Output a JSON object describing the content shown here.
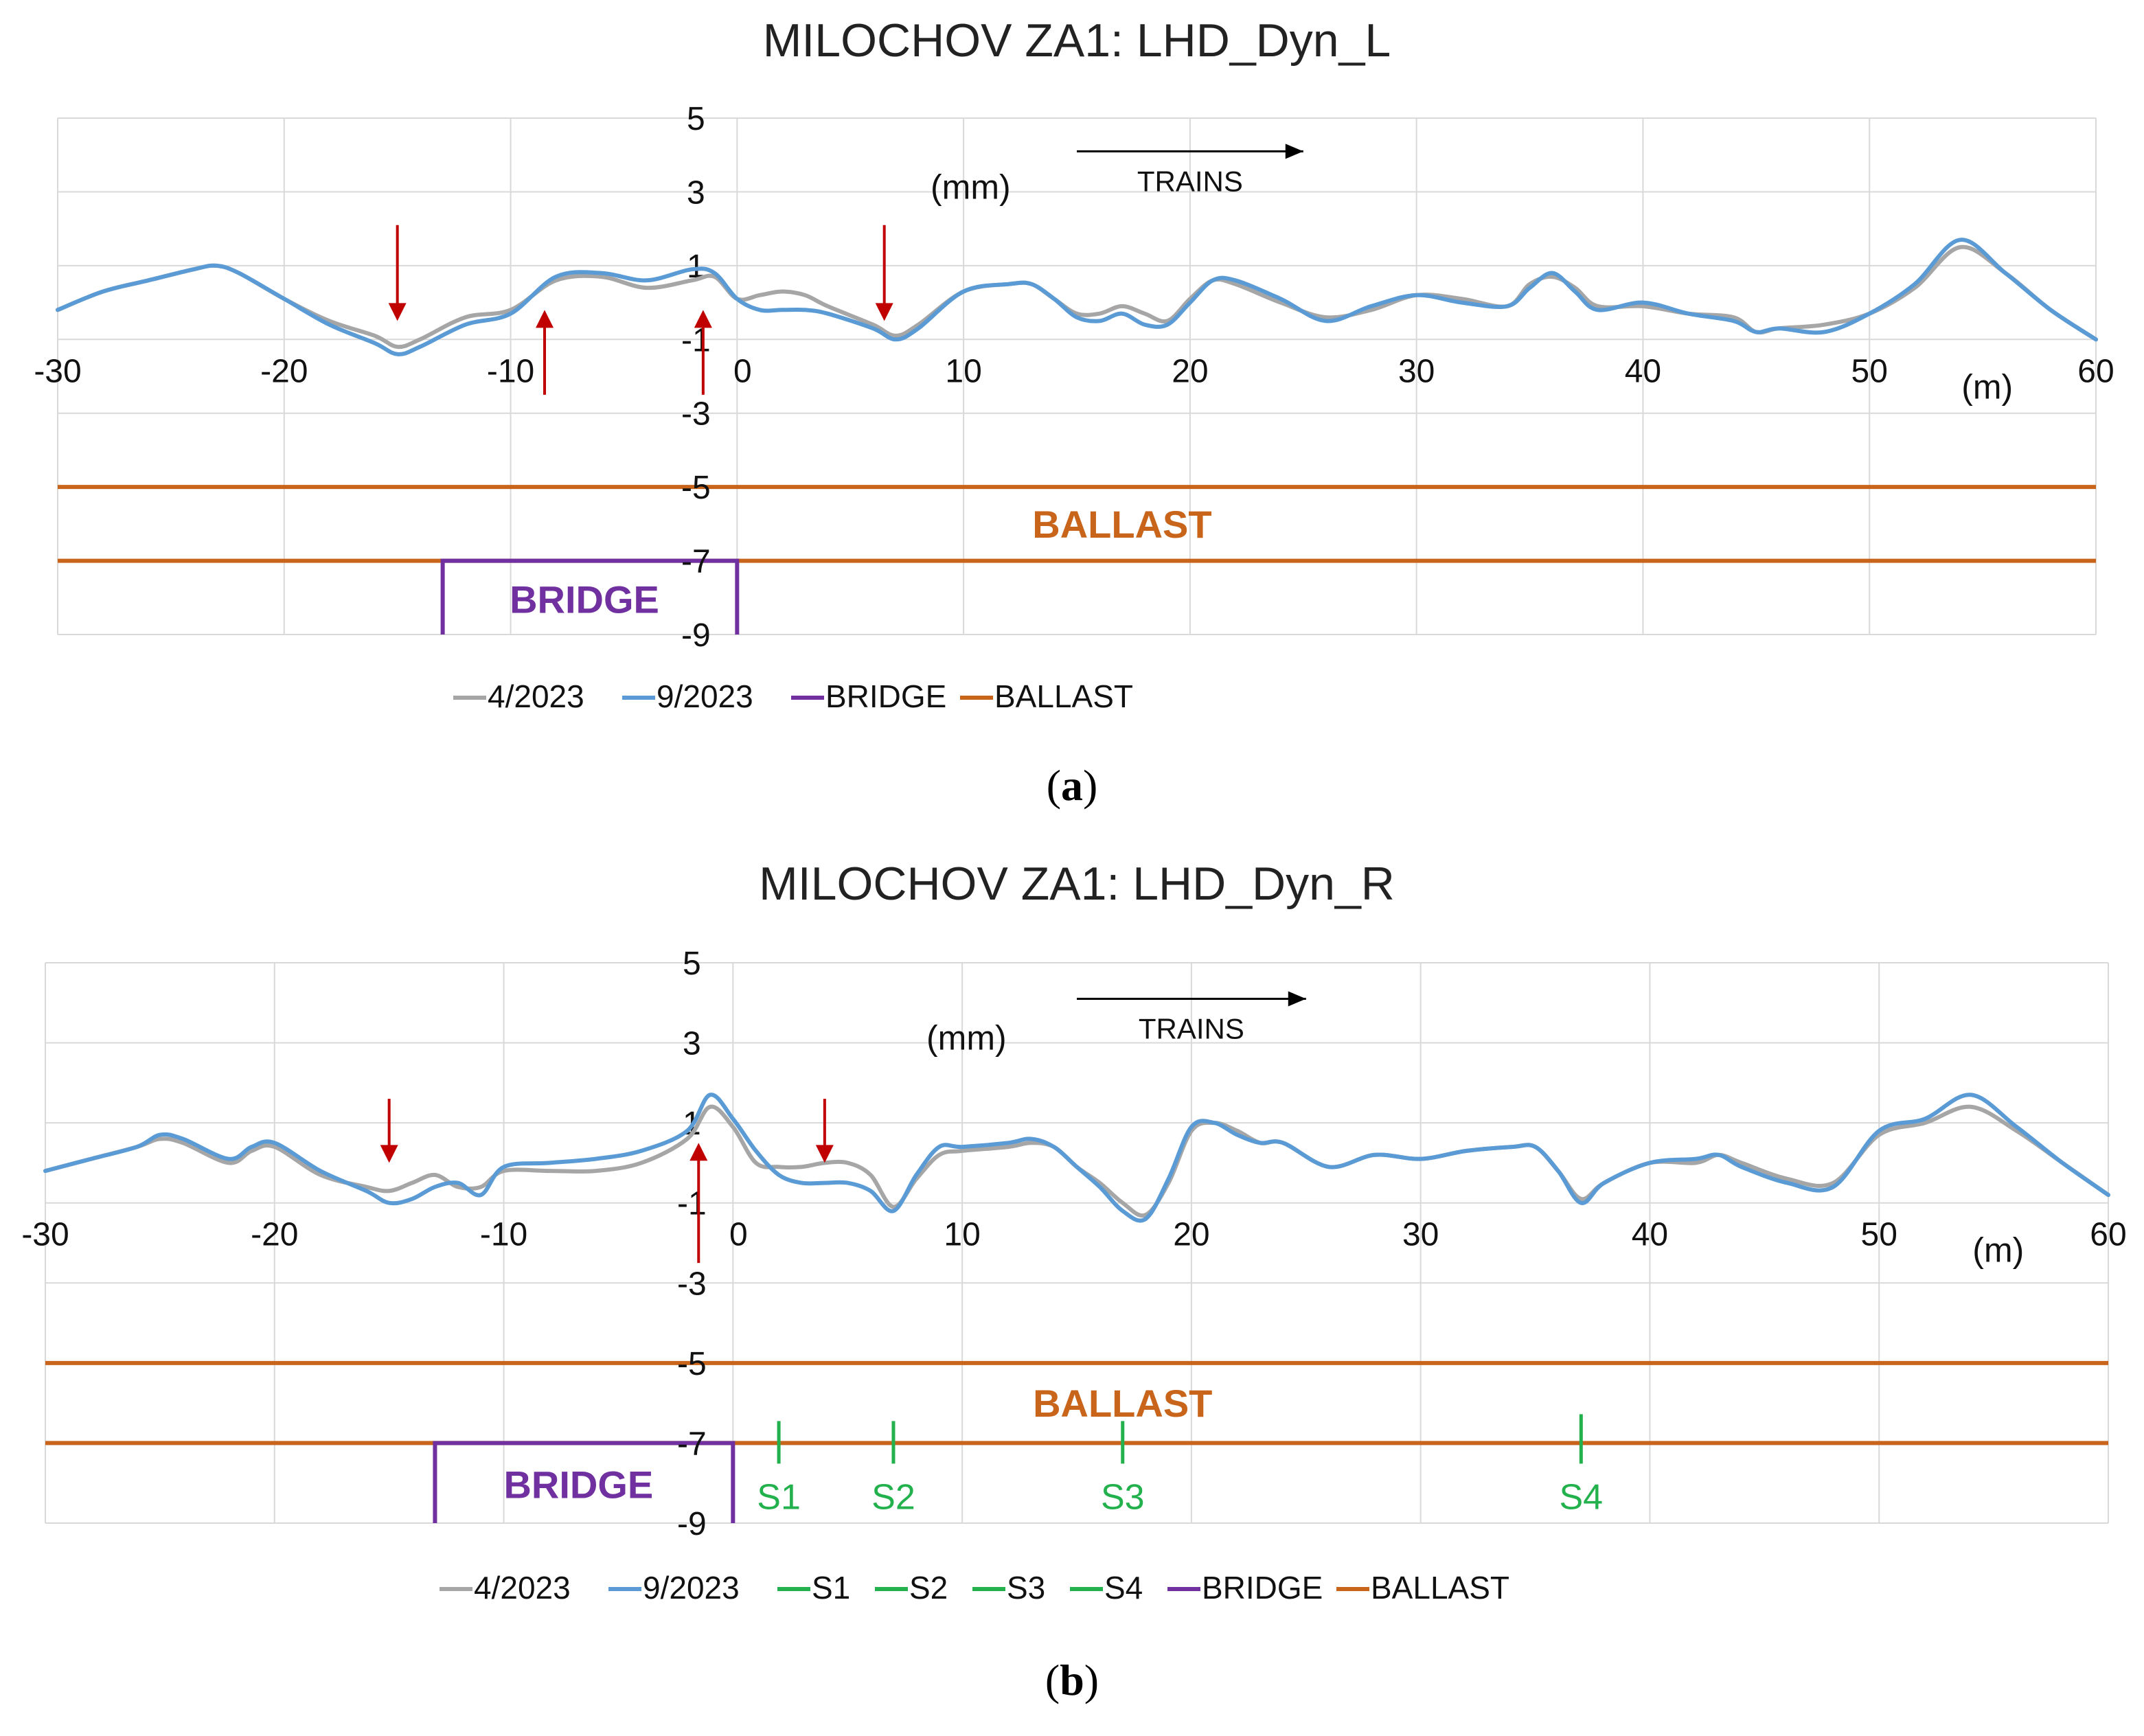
{
  "colors": {
    "grid": "#d9d9d9",
    "series_apr": "#a6a6a6",
    "series_sep": "#5b9bd5",
    "bridge": "#7030a0",
    "ballast": "#c8651b",
    "sensor": "#22b14c",
    "arrow": "#c00000",
    "axis_text": "#111111"
  },
  "chart_data": [
    {
      "type": "line",
      "panel": "a",
      "title": "MILOCHOV ZA1: LHD_Dyn_L",
      "xlabel": "(m)",
      "ylabel": "(mm)",
      "xlim": [
        -30,
        60
      ],
      "ylim": [
        -9,
        5
      ],
      "xticks": [
        -30,
        -20,
        -10,
        0,
        10,
        20,
        30,
        40,
        50,
        60
      ],
      "yticks": [
        5,
        3,
        1,
        -1,
        -3,
        -5,
        -7,
        -9
      ],
      "grid": true,
      "direction_label": "TRAINS",
      "caption_letter": "a",
      "caption_open": "(",
      "caption_close": ")",
      "series": [
        {
          "name": "4/2023",
          "x": [
            -30,
            -28,
            -26,
            -24,
            -23,
            -22,
            -20,
            -18,
            -16,
            -15,
            -14,
            -12,
            -10,
            -8,
            -6,
            -4,
            -2,
            -1,
            0,
            1,
            2,
            3,
            4,
            6,
            7,
            8,
            10,
            12,
            13,
            14,
            15,
            16,
            17,
            18,
            19,
            20,
            21,
            22,
            24,
            26,
            28,
            30,
            32,
            34,
            35,
            36,
            37,
            38,
            40,
            42,
            44,
            45,
            46,
            48,
            50,
            52,
            54,
            56,
            58,
            60
          ],
          "y": [
            -0.2,
            0.3,
            0.6,
            0.9,
            1.0,
            0.8,
            0.1,
            -0.5,
            -0.9,
            -1.2,
            -1.0,
            -0.4,
            -0.2,
            0.6,
            0.7,
            0.4,
            0.6,
            0.7,
            0.1,
            0.2,
            0.3,
            0.2,
            -0.1,
            -0.6,
            -0.9,
            -0.6,
            0.3,
            0.5,
            0.5,
            0.1,
            -0.3,
            -0.3,
            -0.1,
            -0.3,
            -0.5,
            0.1,
            0.6,
            0.5,
            0.0,
            -0.4,
            -0.2,
            0.2,
            0.1,
            -0.1,
            0.5,
            0.7,
            0.4,
            -0.1,
            -0.1,
            -0.3,
            -0.4,
            -0.8,
            -0.7,
            -0.6,
            -0.3,
            0.4,
            1.5,
            0.8,
            -0.2,
            -1.0
          ]
        },
        {
          "name": "9/2023",
          "x": [
            -30,
            -28,
            -26,
            -24,
            -23,
            -22,
            -20,
            -18,
            -16,
            -15,
            -14,
            -12,
            -10,
            -8,
            -6,
            -4,
            -2,
            -1,
            0,
            1,
            2,
            3,
            4,
            6,
            7,
            8,
            10,
            12,
            13,
            14,
            15,
            16,
            17,
            18,
            19,
            20,
            21,
            22,
            24,
            26,
            28,
            30,
            32,
            34,
            35,
            36,
            37,
            38,
            40,
            42,
            44,
            45,
            46,
            48,
            50,
            52,
            54,
            56,
            58,
            60
          ],
          "y": [
            -0.2,
            0.3,
            0.6,
            0.9,
            1.0,
            0.8,
            0.1,
            -0.6,
            -1.1,
            -1.4,
            -1.2,
            -0.6,
            -0.3,
            0.7,
            0.8,
            0.6,
            0.9,
            0.8,
            0.1,
            -0.2,
            -0.2,
            -0.2,
            -0.3,
            -0.7,
            -1.0,
            -0.7,
            0.3,
            0.5,
            0.5,
            0.1,
            -0.4,
            -0.5,
            -0.3,
            -0.6,
            -0.6,
            0.0,
            0.6,
            0.6,
            0.1,
            -0.5,
            -0.1,
            0.2,
            0.0,
            -0.1,
            0.4,
            0.8,
            0.3,
            -0.2,
            0.0,
            -0.3,
            -0.5,
            -0.8,
            -0.7,
            -0.8,
            -0.3,
            0.5,
            1.7,
            0.8,
            -0.2,
            -1.0
          ]
        }
      ],
      "bridge": {
        "x_start": -13,
        "x_end": 0,
        "y_top": -7,
        "label": "BRIDGE"
      },
      "ballast": {
        "y_top": -5,
        "y_bottom": -7,
        "label": "BALLAST"
      },
      "arrows_down": [
        -15,
        6.5
      ],
      "arrows_up": [
        -8.5,
        -1.5
      ],
      "sensors": [],
      "legend": [
        "4/2023",
        "9/2023",
        "BRIDGE",
        "BALLAST"
      ]
    },
    {
      "type": "line",
      "panel": "b",
      "title": "MILOCHOV ZA1: LHD_Dyn_R",
      "xlabel": "(m)",
      "ylabel": "(mm)",
      "xlim": [
        -30,
        60
      ],
      "ylim": [
        -9,
        5
      ],
      "xticks": [
        -30,
        -20,
        -10,
        0,
        10,
        20,
        30,
        40,
        50,
        60
      ],
      "yticks": [
        5,
        3,
        1,
        -1,
        -3,
        -5,
        -7,
        -9
      ],
      "grid": true,
      "direction_label": "TRAINS",
      "caption_letter": "b",
      "caption_open": "(",
      "caption_close": ")",
      "series": [
        {
          "name": "4/2023",
          "x": [
            -30,
            -28,
            -26,
            -25,
            -24,
            -22,
            -21,
            -20,
            -18,
            -16,
            -15,
            -14,
            -13,
            -12,
            -11,
            -10,
            -8,
            -6,
            -4,
            -2,
            -1,
            0,
            1,
            2,
            3,
            4,
            5,
            6,
            7,
            8,
            9,
            10,
            12,
            13,
            14,
            15,
            16,
            17,
            18,
            19,
            20,
            21,
            22,
            23,
            24,
            26,
            28,
            30,
            32,
            34,
            35,
            36,
            37,
            38,
            40,
            42,
            43,
            44,
            46,
            48,
            50,
            52,
            54,
            56,
            58,
            60
          ],
          "y": [
            -0.2,
            0.1,
            0.4,
            0.6,
            0.5,
            0.0,
            0.3,
            0.4,
            -0.3,
            -0.6,
            -0.7,
            -0.5,
            -0.3,
            -0.6,
            -0.6,
            -0.2,
            -0.2,
            -0.2,
            0.0,
            0.6,
            1.4,
            0.9,
            0.0,
            -0.1,
            -0.1,
            0.0,
            0.0,
            -0.3,
            -1.1,
            -0.4,
            0.2,
            0.3,
            0.4,
            0.5,
            0.4,
            -0.1,
            -0.5,
            -1.0,
            -1.3,
            -0.5,
            0.8,
            1.0,
            0.8,
            0.5,
            0.5,
            -0.1,
            0.2,
            0.1,
            0.3,
            0.4,
            0.4,
            -0.2,
            -0.9,
            -0.5,
            0.0,
            0.0,
            0.2,
            0.0,
            -0.4,
            -0.5,
            0.7,
            1.0,
            1.4,
            0.8,
            0.0,
            -0.8
          ]
        },
        {
          "name": "9/2023",
          "x": [
            -30,
            -28,
            -26,
            -25,
            -24,
            -22,
            -21,
            -20,
            -18,
            -16,
            -15,
            -14,
            -13,
            -12,
            -11,
            -10,
            -8,
            -6,
            -4,
            -2,
            -1,
            0,
            1,
            2,
            3,
            4,
            5,
            6,
            7,
            8,
            9,
            10,
            12,
            13,
            14,
            15,
            16,
            17,
            18,
            19,
            20,
            21,
            22,
            23,
            24,
            26,
            28,
            30,
            32,
            34,
            35,
            36,
            37,
            38,
            40,
            42,
            43,
            44,
            46,
            48,
            50,
            52,
            54,
            56,
            58,
            60
          ],
          "y": [
            -0.2,
            0.1,
            0.4,
            0.7,
            0.6,
            0.1,
            0.4,
            0.5,
            -0.2,
            -0.7,
            -1.0,
            -0.9,
            -0.6,
            -0.5,
            -0.8,
            -0.1,
            0.0,
            0.1,
            0.3,
            0.8,
            1.7,
            1.1,
            0.3,
            -0.3,
            -0.5,
            -0.5,
            -0.5,
            -0.7,
            -1.2,
            -0.3,
            0.4,
            0.4,
            0.5,
            0.6,
            0.4,
            -0.1,
            -0.6,
            -1.2,
            -1.4,
            -0.4,
            0.9,
            1.0,
            0.7,
            0.5,
            0.5,
            -0.1,
            0.2,
            0.1,
            0.3,
            0.4,
            0.4,
            -0.2,
            -1.0,
            -0.5,
            0.0,
            0.1,
            0.2,
            -0.1,
            -0.5,
            -0.6,
            0.8,
            1.1,
            1.7,
            0.9,
            0.0,
            -0.8
          ]
        }
      ],
      "bridge": {
        "x_start": -13,
        "x_end": 0,
        "y_top": -7,
        "label": "BRIDGE"
      },
      "ballast": {
        "y_top": -5,
        "y_bottom": -7,
        "label": "BALLAST"
      },
      "arrows_down": [
        -15,
        4
      ],
      "arrows_up": [
        -1.5
      ],
      "sensors": [
        {
          "name": "S1",
          "x": 2
        },
        {
          "name": "S2",
          "x": 7
        },
        {
          "name": "S3",
          "x": 17
        },
        {
          "name": "S4",
          "x": 37
        }
      ],
      "legend": [
        "4/2023",
        "9/2023",
        "S1",
        "S2",
        "S3",
        "S4",
        "BRIDGE",
        "BALLAST"
      ]
    }
  ]
}
